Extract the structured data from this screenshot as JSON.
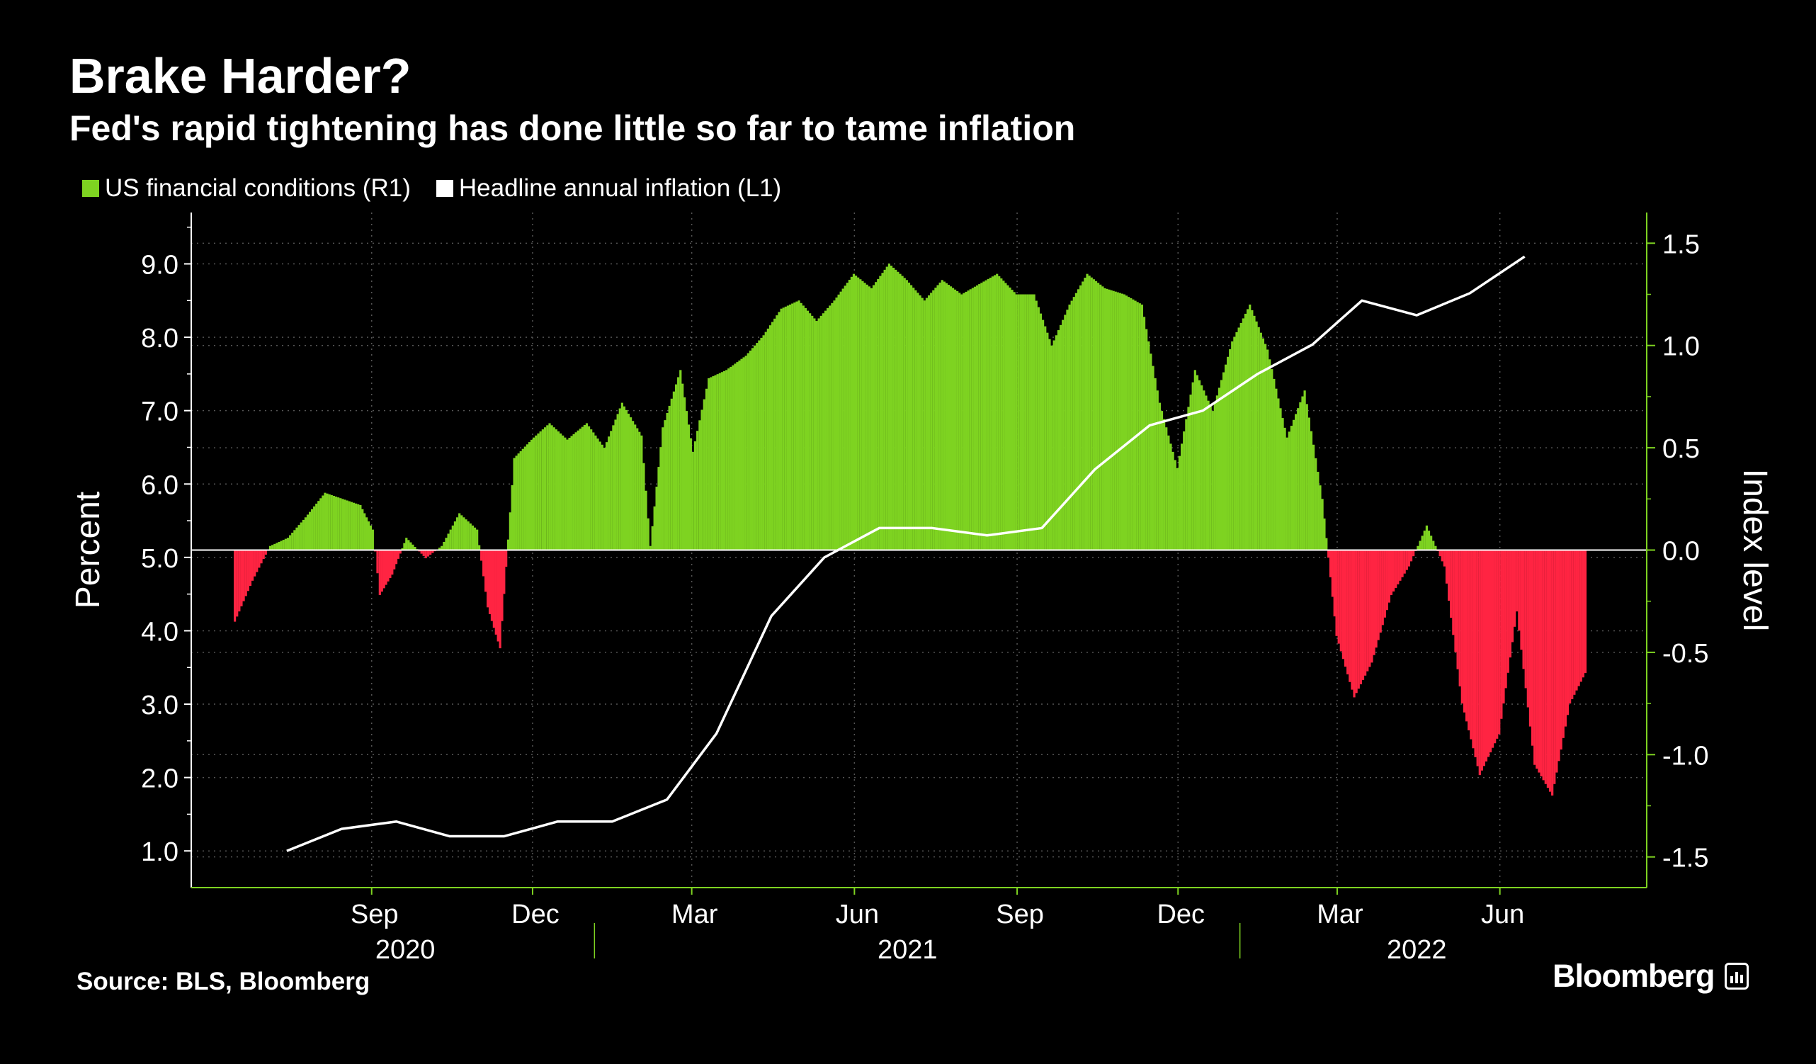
{
  "header": {
    "title": "Brake Harder?",
    "subtitle": "Fed's rapid tightening has done little so far to tame inflation"
  },
  "legend": [
    {
      "label": "US financial conditions (R1)",
      "color": "#7ED321"
    },
    {
      "label": "Headline annual inflation (L1)",
      "color": "#FFFFFF"
    }
  ],
  "footer": {
    "source": "Source: BLS, Bloomberg",
    "brand": "Bloomberg"
  },
  "colors": {
    "background": "#000000",
    "positive": "#7ED321",
    "negative": "#FF2442",
    "line": "#FFFFFF",
    "right_axis": "#7ED321",
    "grid": "#555555"
  },
  "chart_data": {
    "type": "bar+line",
    "title": "Brake Harder?",
    "subtitle": "Fed's rapid tightening has done little so far to tame inflation",
    "x_range": [
      "2020-06-15",
      "2022-07-20"
    ],
    "x_ticks": [
      {
        "date": "2020-09-01",
        "label": "Sep"
      },
      {
        "date": "2020-12-01",
        "label": "Dec"
      },
      {
        "date": "2021-03-01",
        "label": "Mar"
      },
      {
        "date": "2021-06-01",
        "label": "Jun"
      },
      {
        "date": "2021-09-01",
        "label": "Sep"
      },
      {
        "date": "2021-12-01",
        "label": "Dec"
      },
      {
        "date": "2022-03-01",
        "label": "Mar"
      },
      {
        "date": "2022-06-01",
        "label": "Jun"
      }
    ],
    "year_labels": [
      {
        "label": "2020",
        "center": "2020-09-20"
      },
      {
        "label": "2021",
        "center": "2021-07-01"
      },
      {
        "label": "2022",
        "center": "2022-04-15"
      }
    ],
    "year_separators": [
      "2021-01-01",
      "2022-01-01"
    ],
    "left_axis": {
      "label": "Percent",
      "ylim": [
        0.5,
        9.7
      ],
      "ticks": [
        1.0,
        2.0,
        3.0,
        4.0,
        5.0,
        6.0,
        7.0,
        8.0,
        9.0
      ],
      "tick_labels": [
        "1.0",
        "2.0",
        "3.0",
        "4.0",
        "5.0",
        "6.0",
        "7.0",
        "8.0",
        "9.0"
      ]
    },
    "right_axis": {
      "label": "Index level",
      "ylim": [
        -1.65,
        1.65
      ],
      "ticks": [
        -1.5,
        -1.0,
        -0.5,
        0.0,
        0.5,
        1.0,
        1.5
      ],
      "tick_labels": [
        "-1.5",
        "-1.0",
        "-0.5",
        "0.0",
        "0.5",
        "1.0",
        "1.5"
      ]
    },
    "series": [
      {
        "name": "US financial conditions (R1)",
        "type": "bar",
        "axis": "right",
        "points": [
          [
            "2020-06-15",
            -0.35
          ],
          [
            "2020-06-25",
            -0.15
          ],
          [
            "2020-07-05",
            0.02
          ],
          [
            "2020-07-15",
            0.06
          ],
          [
            "2020-07-25",
            0.16
          ],
          [
            "2020-08-05",
            0.28
          ],
          [
            "2020-08-15",
            0.25
          ],
          [
            "2020-08-25",
            0.22
          ],
          [
            "2020-09-01",
            0.1
          ],
          [
            "2020-09-05",
            -0.22
          ],
          [
            "2020-09-12",
            -0.12
          ],
          [
            "2020-09-20",
            0.06
          ],
          [
            "2020-10-01",
            -0.04
          ],
          [
            "2020-10-10",
            0.02
          ],
          [
            "2020-10-20",
            0.18
          ],
          [
            "2020-10-30",
            0.1
          ],
          [
            "2020-11-05",
            -0.28
          ],
          [
            "2020-11-12",
            -0.48
          ],
          [
            "2020-11-20",
            0.45
          ],
          [
            "2020-12-01",
            0.55
          ],
          [
            "2020-12-10",
            0.62
          ],
          [
            "2020-12-20",
            0.54
          ],
          [
            "2020-12-31",
            0.62
          ],
          [
            "2021-01-10",
            0.5
          ],
          [
            "2021-01-20",
            0.72
          ],
          [
            "2021-01-31",
            0.56
          ],
          [
            "2021-02-05",
            0.02
          ],
          [
            "2021-02-12",
            0.6
          ],
          [
            "2021-02-22",
            0.88
          ],
          [
            "2021-03-01",
            0.48
          ],
          [
            "2021-03-10",
            0.84
          ],
          [
            "2021-03-20",
            0.88
          ],
          [
            "2021-03-31",
            0.95
          ],
          [
            "2021-04-10",
            1.05
          ],
          [
            "2021-04-20",
            1.18
          ],
          [
            "2021-04-30",
            1.22
          ],
          [
            "2021-05-10",
            1.12
          ],
          [
            "2021-05-20",
            1.22
          ],
          [
            "2021-05-31",
            1.35
          ],
          [
            "2021-06-10",
            1.28
          ],
          [
            "2021-06-20",
            1.4
          ],
          [
            "2021-06-30",
            1.32
          ],
          [
            "2021-07-10",
            1.22
          ],
          [
            "2021-07-20",
            1.32
          ],
          [
            "2021-07-31",
            1.25
          ],
          [
            "2021-08-10",
            1.3
          ],
          [
            "2021-08-20",
            1.35
          ],
          [
            "2021-08-31",
            1.25
          ],
          [
            "2021-09-10",
            1.25
          ],
          [
            "2021-09-20",
            1.0
          ],
          [
            "2021-09-30",
            1.2
          ],
          [
            "2021-10-10",
            1.35
          ],
          [
            "2021-10-20",
            1.28
          ],
          [
            "2021-10-31",
            1.25
          ],
          [
            "2021-11-10",
            1.2
          ],
          [
            "2021-11-20",
            0.72
          ],
          [
            "2021-11-30",
            0.4
          ],
          [
            "2021-12-10",
            0.88
          ],
          [
            "2021-12-20",
            0.68
          ],
          [
            "2021-12-31",
            1.02
          ],
          [
            "2022-01-10",
            1.2
          ],
          [
            "2022-01-20",
            0.98
          ],
          [
            "2022-01-31",
            0.55
          ],
          [
            "2022-02-10",
            0.78
          ],
          [
            "2022-02-20",
            0.25
          ],
          [
            "2022-02-28",
            -0.42
          ],
          [
            "2022-03-10",
            -0.72
          ],
          [
            "2022-03-20",
            -0.55
          ],
          [
            "2022-03-31",
            -0.22
          ],
          [
            "2022-04-10",
            -0.08
          ],
          [
            "2022-04-20",
            0.12
          ],
          [
            "2022-04-30",
            -0.08
          ],
          [
            "2022-05-10",
            -0.75
          ],
          [
            "2022-05-20",
            -1.1
          ],
          [
            "2022-05-31",
            -0.9
          ],
          [
            "2022-06-10",
            -0.3
          ],
          [
            "2022-06-20",
            -1.05
          ],
          [
            "2022-06-30",
            -1.2
          ],
          [
            "2022-07-10",
            -0.75
          ],
          [
            "2022-07-20",
            -0.58
          ]
        ]
      },
      {
        "name": "Headline annual inflation (L1)",
        "type": "line",
        "axis": "left",
        "points": [
          [
            "2020-07-15",
            1.0
          ],
          [
            "2020-08-15",
            1.3
          ],
          [
            "2020-09-15",
            1.4
          ],
          [
            "2020-10-15",
            1.2
          ],
          [
            "2020-11-15",
            1.2
          ],
          [
            "2020-12-15",
            1.4
          ],
          [
            "2021-01-15",
            1.4
          ],
          [
            "2021-02-15",
            1.7
          ],
          [
            "2021-03-15",
            2.6
          ],
          [
            "2021-04-15",
            4.2
          ],
          [
            "2021-05-15",
            5.0
          ],
          [
            "2021-06-15",
            5.4
          ],
          [
            "2021-07-15",
            5.4
          ],
          [
            "2021-08-15",
            5.3
          ],
          [
            "2021-09-15",
            5.4
          ],
          [
            "2021-10-15",
            6.2
          ],
          [
            "2021-11-15",
            6.8
          ],
          [
            "2021-12-15",
            7.0
          ],
          [
            "2022-01-15",
            7.5
          ],
          [
            "2022-02-15",
            7.9
          ],
          [
            "2022-03-15",
            8.5
          ],
          [
            "2022-04-15",
            8.3
          ],
          [
            "2022-05-15",
            8.6
          ],
          [
            "2022-06-15",
            9.1
          ]
        ]
      }
    ]
  }
}
